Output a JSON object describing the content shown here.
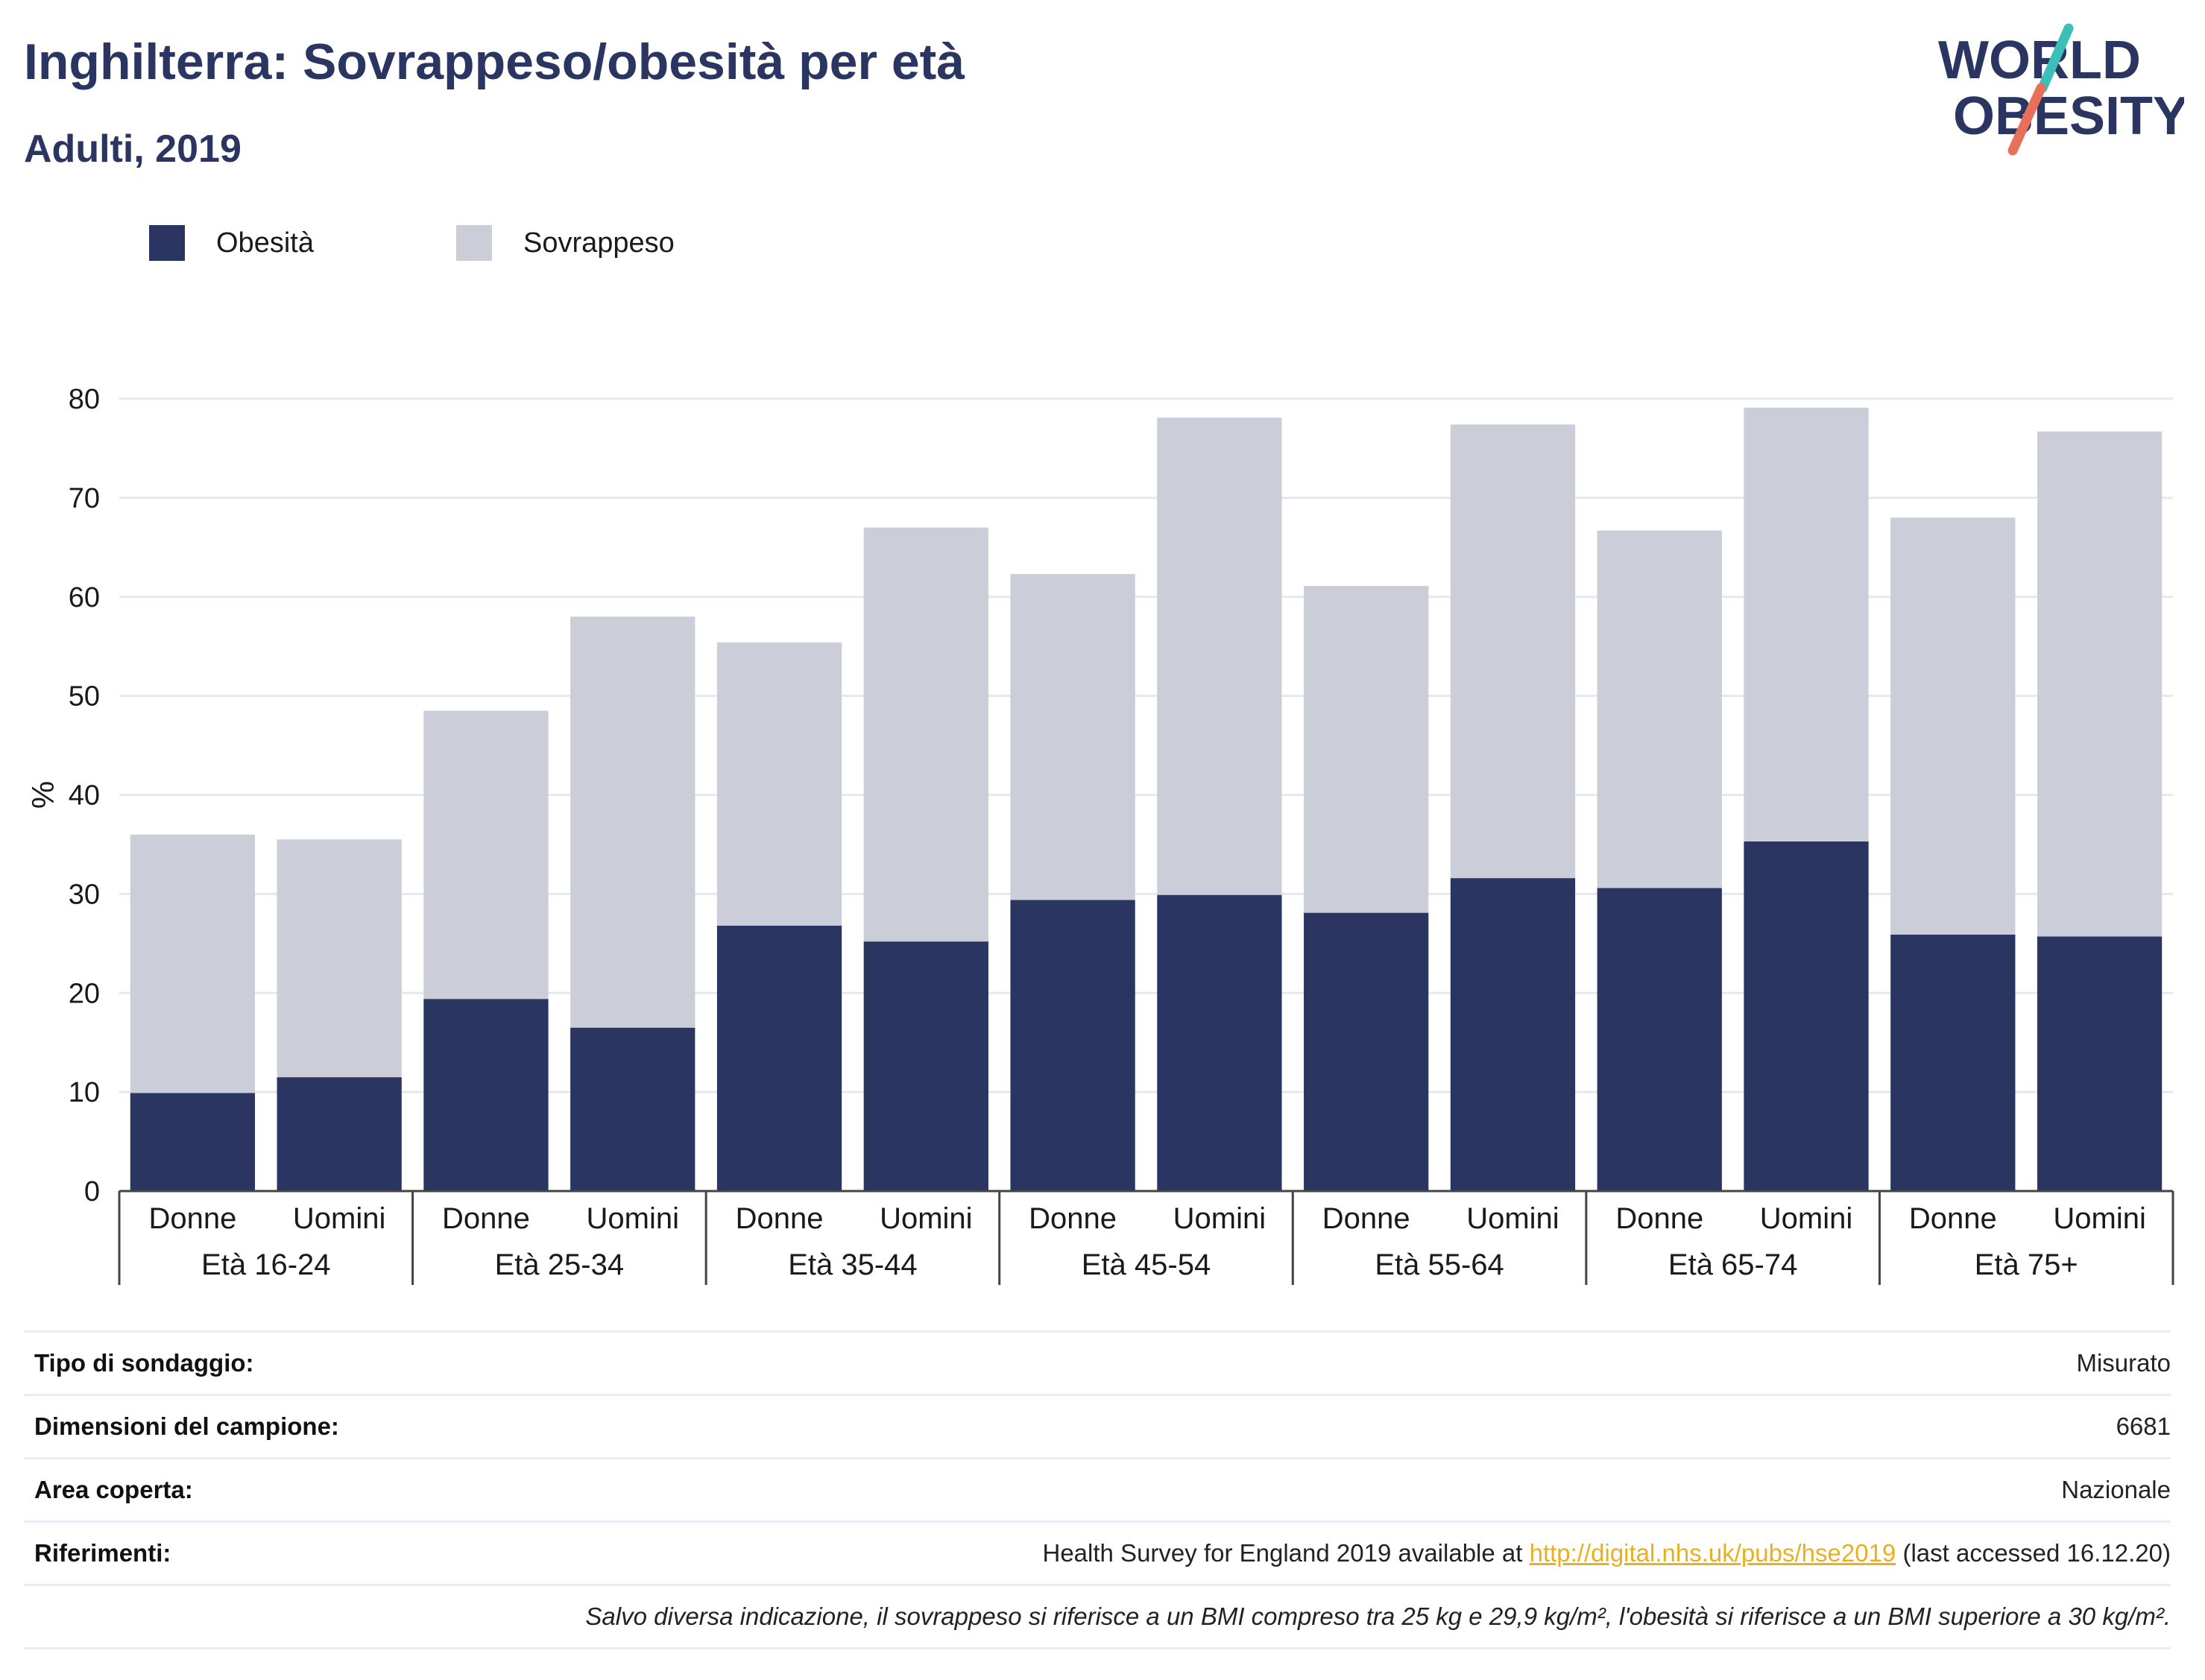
{
  "header": {
    "title": "Inghilterra: Sovrappeso/obesità per età",
    "subtitle": "Adulti, 2019"
  },
  "logo": {
    "line1": "WORLD",
    "line2": "OBESITY",
    "accent_teal": "#3bbfb9",
    "accent_coral": "#e8705a"
  },
  "chart_data": {
    "type": "bar",
    "stacked": true,
    "ylabel": "%",
    "ylim": [
      0,
      80
    ],
    "yticks": [
      0,
      10,
      20,
      30,
      40,
      50,
      60,
      70,
      80
    ],
    "grid": true,
    "legend_position": "top-left",
    "groups": [
      "Età 16-24",
      "Età 25-34",
      "Età 35-44",
      "Età 45-54",
      "Età 55-64",
      "Età 65-74",
      "Età 75+"
    ],
    "sub_categories": [
      "Donne",
      "Uomini"
    ],
    "categories": [
      "Donne",
      "Uomini",
      "Donne",
      "Uomini",
      "Donne",
      "Uomini",
      "Donne",
      "Uomini",
      "Donne",
      "Uomini",
      "Donne",
      "Uomini",
      "Donne",
      "Uomini"
    ],
    "series": [
      {
        "name": "Obesità",
        "color": "#2a3562",
        "values": [
          9.9,
          11.5,
          19.4,
          16.5,
          26.8,
          25.2,
          29.4,
          29.9,
          28.1,
          31.6,
          30.6,
          35.3,
          25.9,
          25.7
        ]
      },
      {
        "name": "Sovrappeso",
        "color": "#cbcdd8",
        "values": [
          26.1,
          24.0,
          29.1,
          41.5,
          28.6,
          41.8,
          32.9,
          48.2,
          33.0,
          45.8,
          36.1,
          43.8,
          42.1,
          51.0
        ]
      }
    ]
  },
  "info_table": {
    "rows": [
      {
        "label": "Tipo di sondaggio:",
        "value": "Misurato"
      },
      {
        "label": "Dimensioni del campione:",
        "value": "6681"
      },
      {
        "label": "Area coperta:",
        "value": "Nazionale"
      }
    ],
    "references": {
      "label": "Riferimenti:",
      "prefix": "Health Survey for England 2019 available at ",
      "link_text": "http://digital.nhs.uk/pubs/hse2019",
      "suffix": " (last accessed 16.12.20)"
    },
    "note": "Salvo diversa indicazione, il sovrappeso si riferisce a un BMI compreso tra 25 kg e 29,9 kg/m², l'obesità si riferisce a un BMI superiore a 30 kg/m²."
  }
}
